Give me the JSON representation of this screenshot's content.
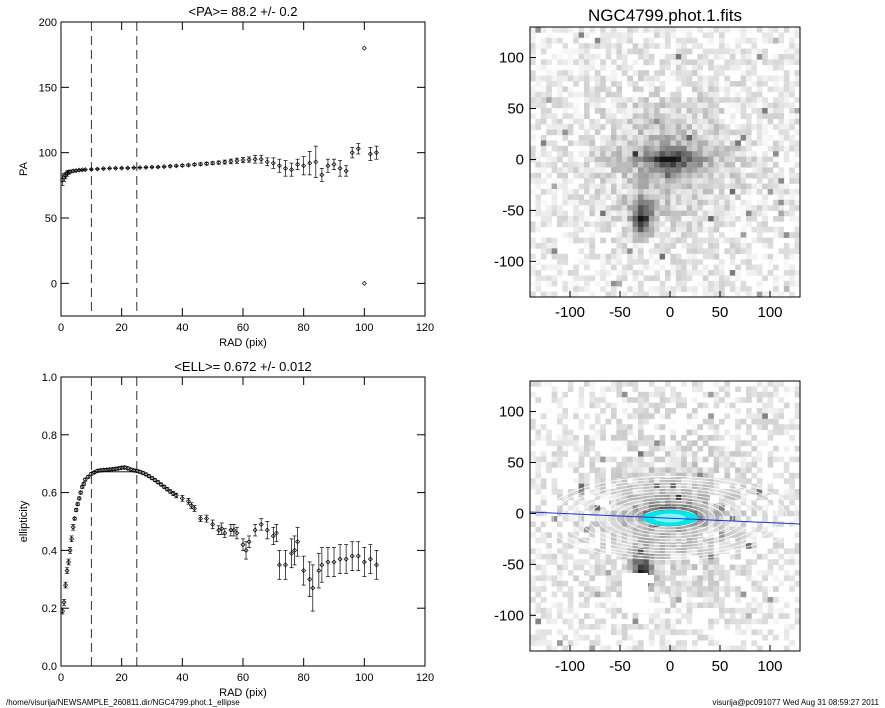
{
  "figure": {
    "footer_left": "/home/visurija/NEWSAMPLE_260811.dir/NGC4799.phot.1_ellipse",
    "footer_right": "visurija@pc091077  Wed Aug 31 08:59:27 2011"
  },
  "chart_data": [
    {
      "id": "pa",
      "type": "scatter",
      "title": "<PA>=  88.2 +/-   0.2",
      "xlabel": "RAD (pix)",
      "ylabel": "PA",
      "xlim": [
        0,
        120
      ],
      "ylim": [
        -25,
        200
      ],
      "xticks": [
        0,
        20,
        40,
        60,
        80,
        100,
        120
      ],
      "yticks": [
        0,
        50,
        100,
        150,
        200
      ],
      "vlines": [
        10,
        25
      ],
      "grid": false,
      "points": [
        [
          0.5,
          79,
          4
        ],
        [
          1,
          81,
          3
        ],
        [
          1.5,
          82.5,
          2.5
        ],
        [
          2,
          84,
          2
        ],
        [
          2.5,
          85,
          1.5
        ],
        [
          3,
          85.5,
          1
        ],
        [
          4,
          86,
          0.8
        ],
        [
          5,
          86.3,
          0.6
        ],
        [
          6,
          86.6,
          0.5
        ],
        [
          7,
          86.8,
          0.4
        ],
        [
          8,
          87,
          0.4
        ],
        [
          10,
          87.2,
          0.3
        ],
        [
          12,
          87.5,
          0.3
        ],
        [
          14,
          87.8,
          0.3
        ],
        [
          16,
          88,
          0.3
        ],
        [
          18,
          88.1,
          0.3
        ],
        [
          20,
          88.2,
          0.3
        ],
        [
          22,
          88.3,
          0.3
        ],
        [
          24,
          88.5,
          0.3
        ],
        [
          26,
          88.6,
          0.3
        ],
        [
          28,
          88.7,
          0.3
        ],
        [
          30,
          88.9,
          0.3
        ],
        [
          32,
          89,
          0.4
        ],
        [
          34,
          89.3,
          0.4
        ],
        [
          36,
          89.6,
          0.5
        ],
        [
          38,
          89.9,
          0.6
        ],
        [
          40,
          90.2,
          0.6
        ],
        [
          42,
          90.5,
          0.7
        ],
        [
          44,
          90.9,
          0.8
        ],
        [
          46,
          91.2,
          0.9
        ],
        [
          48,
          91.6,
          1
        ],
        [
          50,
          92,
          1
        ],
        [
          52,
          92.4,
          1.2
        ],
        [
          54,
          92.8,
          1.5
        ],
        [
          56,
          93.3,
          1.8
        ],
        [
          58,
          93.8,
          2
        ],
        [
          60,
          94.3,
          2
        ],
        [
          62,
          94.7,
          2
        ],
        [
          64,
          95,
          3
        ],
        [
          66,
          95,
          3
        ],
        [
          68,
          93,
          3
        ],
        [
          70,
          92,
          4
        ],
        [
          72,
          90,
          5
        ],
        [
          74,
          88,
          6
        ],
        [
          76,
          87,
          5
        ],
        [
          78,
          91,
          4
        ],
        [
          80,
          90,
          7
        ],
        [
          82,
          92,
          9
        ],
        [
          84,
          93,
          12
        ],
        [
          86,
          83,
          5
        ],
        [
          88,
          90,
          5
        ],
        [
          90,
          91,
          4
        ],
        [
          92,
          88,
          6
        ],
        [
          94,
          86,
          4
        ],
        [
          96,
          100,
          4
        ],
        [
          98,
          103,
          4
        ],
        [
          100,
          180,
          0
        ],
        [
          100,
          0,
          0
        ],
        [
          102,
          99,
          5
        ],
        [
          104,
          100,
          5
        ]
      ]
    },
    {
      "id": "ell",
      "type": "scatter",
      "title": "<ELL>= 0.672 +/-  0.012",
      "xlabel": "RAD (pix)",
      "ylabel": "ellipticity",
      "xlim": [
        0,
        120
      ],
      "ylim": [
        0.0,
        1.0
      ],
      "xticks": [
        0,
        20,
        40,
        60,
        80,
        100,
        120
      ],
      "yticks": [
        0.0,
        0.2,
        0.4,
        0.6,
        0.8,
        1.0
      ],
      "vlines": [
        10,
        25
      ],
      "mean_line": {
        "value": 0.672,
        "x_range": [
          10,
          25
        ]
      },
      "grid": false,
      "points": [
        [
          0.5,
          0.19,
          0.01
        ],
        [
          1,
          0.22,
          0.01
        ],
        [
          1.5,
          0.28,
          0.01
        ],
        [
          2,
          0.33,
          0.01
        ],
        [
          2.5,
          0.36,
          0.01
        ],
        [
          3,
          0.4,
          0.01
        ],
        [
          3.5,
          0.44,
          0.01
        ],
        [
          4,
          0.48,
          0.01
        ],
        [
          4.5,
          0.51,
          0.005
        ],
        [
          5,
          0.54,
          0.005
        ],
        [
          5.5,
          0.56,
          0.005
        ],
        [
          6,
          0.58,
          0.005
        ],
        [
          6.5,
          0.6,
          0.005
        ],
        [
          7,
          0.62,
          0.005
        ],
        [
          7.5,
          0.63,
          0.005
        ],
        [
          8,
          0.645,
          0.005
        ],
        [
          9,
          0.655,
          0.005
        ],
        [
          10,
          0.665,
          0.005
        ],
        [
          11,
          0.67,
          0.005
        ],
        [
          12,
          0.675,
          0.005
        ],
        [
          13,
          0.677,
          0.005
        ],
        [
          14,
          0.678,
          0.005
        ],
        [
          15,
          0.679,
          0.005
        ],
        [
          16,
          0.68,
          0.005
        ],
        [
          17,
          0.681,
          0.005
        ],
        [
          18,
          0.682,
          0.005
        ],
        [
          19,
          0.684,
          0.005
        ],
        [
          20,
          0.686,
          0.005
        ],
        [
          21,
          0.687,
          0.005
        ],
        [
          22,
          0.684,
          0.005
        ],
        [
          23,
          0.68,
          0.005
        ],
        [
          24,
          0.677,
          0.005
        ],
        [
          25,
          0.675,
          0.005
        ],
        [
          26,
          0.672,
          0.005
        ],
        [
          27,
          0.668,
          0.005
        ],
        [
          28,
          0.663,
          0.005
        ],
        [
          29,
          0.657,
          0.005
        ],
        [
          30,
          0.65,
          0.005
        ],
        [
          31,
          0.643,
          0.005
        ],
        [
          32,
          0.636,
          0.005
        ],
        [
          33,
          0.628,
          0.005
        ],
        [
          34,
          0.62,
          0.005
        ],
        [
          35,
          0.612,
          0.006
        ],
        [
          36,
          0.604,
          0.006
        ],
        [
          37,
          0.597,
          0.007
        ],
        [
          38,
          0.59,
          0.008
        ],
        [
          40,
          0.58,
          0.01
        ],
        [
          42,
          0.57,
          0.01
        ],
        [
          43,
          0.555,
          0.01
        ],
        [
          44,
          0.545,
          0.01
        ],
        [
          46,
          0.51,
          0.01
        ],
        [
          48,
          0.51,
          0.012
        ],
        [
          50,
          0.49,
          0.015
        ],
        [
          52,
          0.47,
          0.015
        ],
        [
          53,
          0.475,
          0.02
        ],
        [
          54,
          0.46,
          0.015
        ],
        [
          56,
          0.47,
          0.02
        ],
        [
          57,
          0.47,
          0.02
        ],
        [
          58,
          0.46,
          0.02
        ],
        [
          60,
          0.42,
          0.02
        ],
        [
          61,
          0.4,
          0.03
        ],
        [
          62,
          0.43,
          0.02
        ],
        [
          64,
          0.47,
          0.02
        ],
        [
          66,
          0.49,
          0.02
        ],
        [
          68,
          0.47,
          0.03
        ],
        [
          70,
          0.45,
          0.03
        ],
        [
          71,
          0.46,
          0.03
        ],
        [
          72,
          0.35,
          0.05
        ],
        [
          74,
          0.35,
          0.05
        ],
        [
          76,
          0.39,
          0.05
        ],
        [
          77,
          0.4,
          0.05
        ],
        [
          78,
          0.43,
          0.05
        ],
        [
          80,
          0.33,
          0.05
        ],
        [
          82,
          0.3,
          0.06
        ],
        [
          83,
          0.27,
          0.08
        ],
        [
          85,
          0.33,
          0.06
        ],
        [
          86,
          0.35,
          0.06
        ],
        [
          88,
          0.36,
          0.05
        ],
        [
          90,
          0.36,
          0.05
        ],
        [
          92,
          0.37,
          0.05
        ],
        [
          94,
          0.37,
          0.05
        ],
        [
          96,
          0.38,
          0.05
        ],
        [
          98,
          0.38,
          0.05
        ],
        [
          100,
          0.36,
          0.05
        ],
        [
          102,
          0.37,
          0.05
        ],
        [
          104,
          0.35,
          0.05
        ]
      ]
    },
    {
      "id": "img_top",
      "type": "heatmap",
      "title": "NGC4799.phot.1.fits",
      "xlim": [
        -140,
        130
      ],
      "ylim": [
        -135,
        130
      ],
      "xticks": [
        -100,
        -50,
        0,
        50,
        100
      ],
      "yticks": [
        100,
        50,
        0,
        -50,
        -100
      ],
      "colormap": "grayscale-inverted"
    },
    {
      "id": "img_bottom",
      "type": "heatmap",
      "title": "",
      "xlim": [
        -140,
        130
      ],
      "ylim": [
        -135,
        130
      ],
      "xticks": [
        -100,
        -50,
        0,
        50,
        100
      ],
      "yticks": [
        100,
        50,
        0,
        -50,
        -100
      ],
      "colormap": "grayscale-inverted",
      "overlay": {
        "fill_color": "#00e5e5",
        "pa_line_color": "#2233cc",
        "contour_color": "#ffffff"
      }
    }
  ]
}
